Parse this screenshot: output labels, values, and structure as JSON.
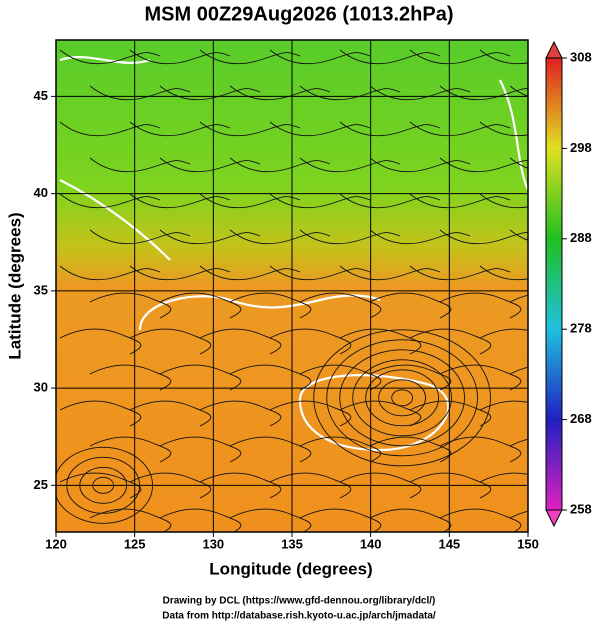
{
  "header": {
    "title": "MSM 00Z29Aug2026 (1013.2hPa)"
  },
  "map": {
    "xlabel": "Longitude (degrees)",
    "ylabel": "Latitude  (degrees)",
    "xlim": [
      120,
      150
    ],
    "xticks": [
      120,
      125,
      130,
      135,
      140,
      145,
      150
    ],
    "ylim": [
      22.6,
      47.9
    ],
    "yticks": [
      25,
      30,
      35,
      40,
      45
    ]
  },
  "colorbar": {
    "lim": [
      258,
      308
    ],
    "ticks": [
      258,
      268,
      278,
      288,
      298,
      308
    ]
  },
  "footer": {
    "line1": "Drawing by DCL (https://www.gfd-dennou.org/library/dcl/)",
    "line2": "Data from http://database.rish.kyoto-u.ac.jp/arch/jmadata/"
  }
}
